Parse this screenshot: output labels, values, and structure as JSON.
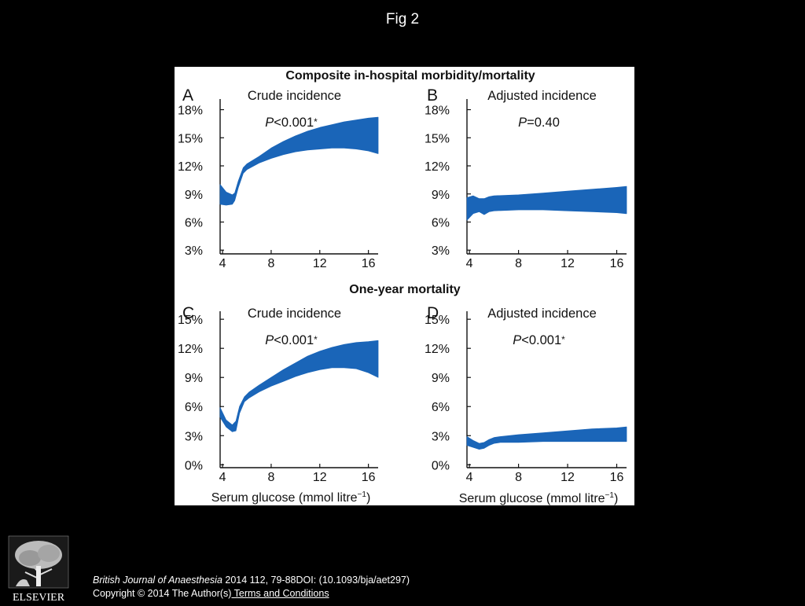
{
  "slide": {
    "title": "Fig 2"
  },
  "figure": {
    "section_titles": [
      "Composite in-hospital morbidity/mortality",
      "One-year mortality"
    ],
    "x_axis_label": "Serum glucose (mmol litre",
    "x_axis_label_sup": "−1",
    "x_axis_label_close": ")"
  },
  "chart_data": [
    {
      "type": "area",
      "panel": "A",
      "title": "Crude incidence",
      "p_value_prefix": "P",
      "p_value_text": "<0.001",
      "significance_mark": "*",
      "x_ticks": [
        4,
        8,
        12,
        16
      ],
      "xlim": [
        3.8,
        16.8
      ],
      "y_ticks": [
        3,
        6,
        9,
        12,
        15,
        18
      ],
      "y_tick_labels": [
        "3%",
        "6%",
        "9%",
        "12%",
        "15%",
        "18%"
      ],
      "ylim": [
        2.6,
        18.8
      ],
      "band_color": "#1a65b8",
      "x": [
        3.8,
        4.3,
        4.8,
        5.0,
        5.3,
        5.7,
        6.0,
        7,
        8,
        9,
        10,
        11,
        12,
        13,
        14,
        15,
        16,
        16.8
      ],
      "upper": [
        10.0,
        9.2,
        8.9,
        9.1,
        10.4,
        11.8,
        12.2,
        13.0,
        13.9,
        14.6,
        15.2,
        15.7,
        16.1,
        16.4,
        16.7,
        16.9,
        17.1,
        17.2
      ],
      "lower": [
        7.9,
        7.8,
        7.9,
        8.3,
        9.7,
        11.2,
        11.6,
        12.3,
        12.8,
        13.2,
        13.5,
        13.7,
        13.8,
        13.9,
        13.9,
        13.8,
        13.6,
        13.3
      ]
    },
    {
      "type": "area",
      "panel": "B",
      "title": "Adjusted incidence",
      "p_value_prefix": "P",
      "p_value_text": "=0.40",
      "significance_mark": "",
      "x_ticks": [
        4,
        8,
        12,
        16
      ],
      "xlim": [
        3.8,
        16.8
      ],
      "y_ticks": [
        3,
        6,
        9,
        12,
        15,
        18
      ],
      "y_tick_labels": [
        "3%",
        "6%",
        "9%",
        "12%",
        "15%",
        "18%"
      ],
      "ylim": [
        2.6,
        18.8
      ],
      "band_color": "#1a65b8",
      "x": [
        3.8,
        4.3,
        4.8,
        5.2,
        5.6,
        6.0,
        8,
        10,
        12,
        14,
        16,
        16.8
      ],
      "upper": [
        8.6,
        8.8,
        8.5,
        8.5,
        8.7,
        8.8,
        8.9,
        9.1,
        9.3,
        9.5,
        9.7,
        9.8
      ],
      "lower": [
        6.2,
        6.9,
        7.1,
        6.8,
        7.1,
        7.2,
        7.3,
        7.3,
        7.2,
        7.1,
        7.0,
        6.9
      ]
    },
    {
      "type": "area",
      "panel": "C",
      "title": "Crude incidence",
      "p_value_prefix": "P",
      "p_value_text": "<0.001",
      "significance_mark": "*",
      "x_ticks": [
        4,
        8,
        12,
        16
      ],
      "xlim": [
        3.8,
        16.8
      ],
      "y_ticks": [
        0,
        3,
        6,
        9,
        12,
        15
      ],
      "y_tick_labels": [
        "0%",
        "3%",
        "6%",
        "9%",
        "12%",
        "15%"
      ],
      "ylim": [
        -0.3,
        15.5
      ],
      "band_color": "#1a65b8",
      "x": [
        3.8,
        4.3,
        4.8,
        5.1,
        5.4,
        5.8,
        6.2,
        7,
        8,
        9,
        10,
        11,
        12,
        13,
        14,
        15,
        16,
        16.8
      ],
      "upper": [
        5.9,
        4.6,
        4.1,
        4.5,
        6.0,
        7.0,
        7.5,
        8.2,
        9.0,
        9.8,
        10.5,
        11.2,
        11.7,
        12.1,
        12.4,
        12.6,
        12.7,
        12.8
      ],
      "lower": [
        4.9,
        3.9,
        3.4,
        3.5,
        5.3,
        6.5,
        6.9,
        7.5,
        8.1,
        8.6,
        9.1,
        9.5,
        9.8,
        10.0,
        10.0,
        9.9,
        9.5,
        9.0
      ]
    },
    {
      "type": "area",
      "panel": "D",
      "title": "Adjusted incidence",
      "p_value_prefix": "P",
      "p_value_text": "<0.001",
      "significance_mark": "*",
      "x_ticks": [
        4,
        8,
        12,
        16
      ],
      "xlim": [
        3.8,
        16.8
      ],
      "y_ticks": [
        0,
        3,
        6,
        9,
        12,
        15
      ],
      "y_tick_labels": [
        "0%",
        "3%",
        "6%",
        "9%",
        "12%",
        "15%"
      ],
      "ylim": [
        -0.3,
        15.5
      ],
      "band_color": "#1a65b8",
      "x": [
        3.8,
        4.3,
        4.8,
        5.2,
        5.6,
        6.0,
        6.5,
        8,
        10,
        12,
        14,
        16,
        16.8
      ],
      "upper": [
        2.9,
        2.5,
        2.2,
        2.3,
        2.6,
        2.8,
        2.9,
        3.1,
        3.3,
        3.5,
        3.7,
        3.8,
        3.9
      ],
      "lower": [
        2.0,
        1.8,
        1.6,
        1.7,
        2.0,
        2.2,
        2.3,
        2.3,
        2.4,
        2.4,
        2.4,
        2.4,
        2.4
      ]
    }
  ],
  "publisher": {
    "logo_name": "ELSEVIER"
  },
  "citation": {
    "journal": "British Journal of Anaesthesia",
    "details": " 2014 112, 79-88DOI: (10.1093/bja/aet297)",
    "copyright": "Copyright © 2014 The Author(s)",
    "terms_link": " Terms and Conditions"
  }
}
